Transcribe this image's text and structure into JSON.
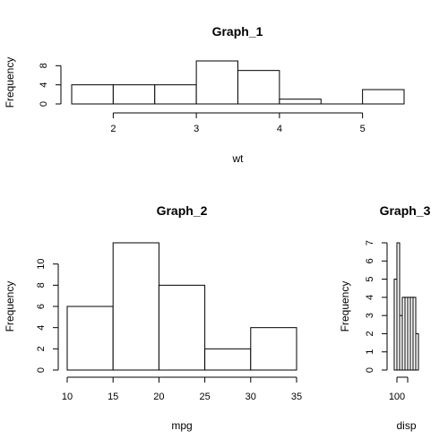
{
  "chart_data": [
    {
      "type": "bar",
      "title": "Graph_1",
      "xlabel": "wt",
      "ylabel": "Frequency",
      "bins": [
        [
          1.5,
          2.0
        ],
        [
          2.0,
          2.5
        ],
        [
          2.5,
          3.0
        ],
        [
          3.0,
          3.5
        ],
        [
          3.5,
          4.0
        ],
        [
          4.0,
          4.5
        ],
        [
          4.5,
          5.0
        ],
        [
          5.0,
          5.5
        ]
      ],
      "values": [
        4,
        4,
        4,
        9,
        7,
        1,
        0,
        3
      ],
      "xlim": [
        1.5,
        5.5
      ],
      "ylim": [
        0,
        9
      ],
      "xticks": [
        2,
        3,
        4,
        5
      ],
      "yticks": [
        0,
        4,
        8
      ],
      "grid": false
    },
    {
      "type": "bar",
      "title": "Graph_2",
      "xlabel": "mpg",
      "ylabel": "Frequency",
      "bins": [
        [
          10,
          15
        ],
        [
          15,
          20
        ],
        [
          20,
          25
        ],
        [
          25,
          30
        ],
        [
          30,
          35
        ]
      ],
      "values": [
        6,
        12,
        8,
        2,
        4
      ],
      "xlim": [
        10,
        35
      ],
      "ylim": [
        0,
        12
      ],
      "xticks": [
        10,
        15,
        20,
        25,
        30,
        35
      ],
      "yticks": [
        0,
        2,
        4,
        6,
        8,
        10
      ],
      "grid": false
    },
    {
      "type": "bar",
      "title": "Graph_3",
      "xlabel": "disp",
      "ylabel": "Frequency",
      "bins": [
        [
          50,
          100
        ],
        [
          100,
          150
        ],
        [
          150,
          200
        ],
        [
          200,
          250
        ],
        [
          250,
          300
        ],
        [
          300,
          350
        ],
        [
          350,
          400
        ],
        [
          400,
          450
        ],
        [
          450,
          500
        ]
      ],
      "values": [
        5,
        7,
        3,
        4,
        4,
        4,
        4,
        4,
        2
      ],
      "xlim": [
        50,
        500
      ],
      "ylim": [
        0,
        7
      ],
      "xticks": [
        100,
        300
      ],
      "xticklabels": [
        "100",
        ""
      ],
      "yticks": [
        0,
        1,
        2,
        3,
        4,
        5,
        6,
        7
      ],
      "grid": false
    }
  ]
}
